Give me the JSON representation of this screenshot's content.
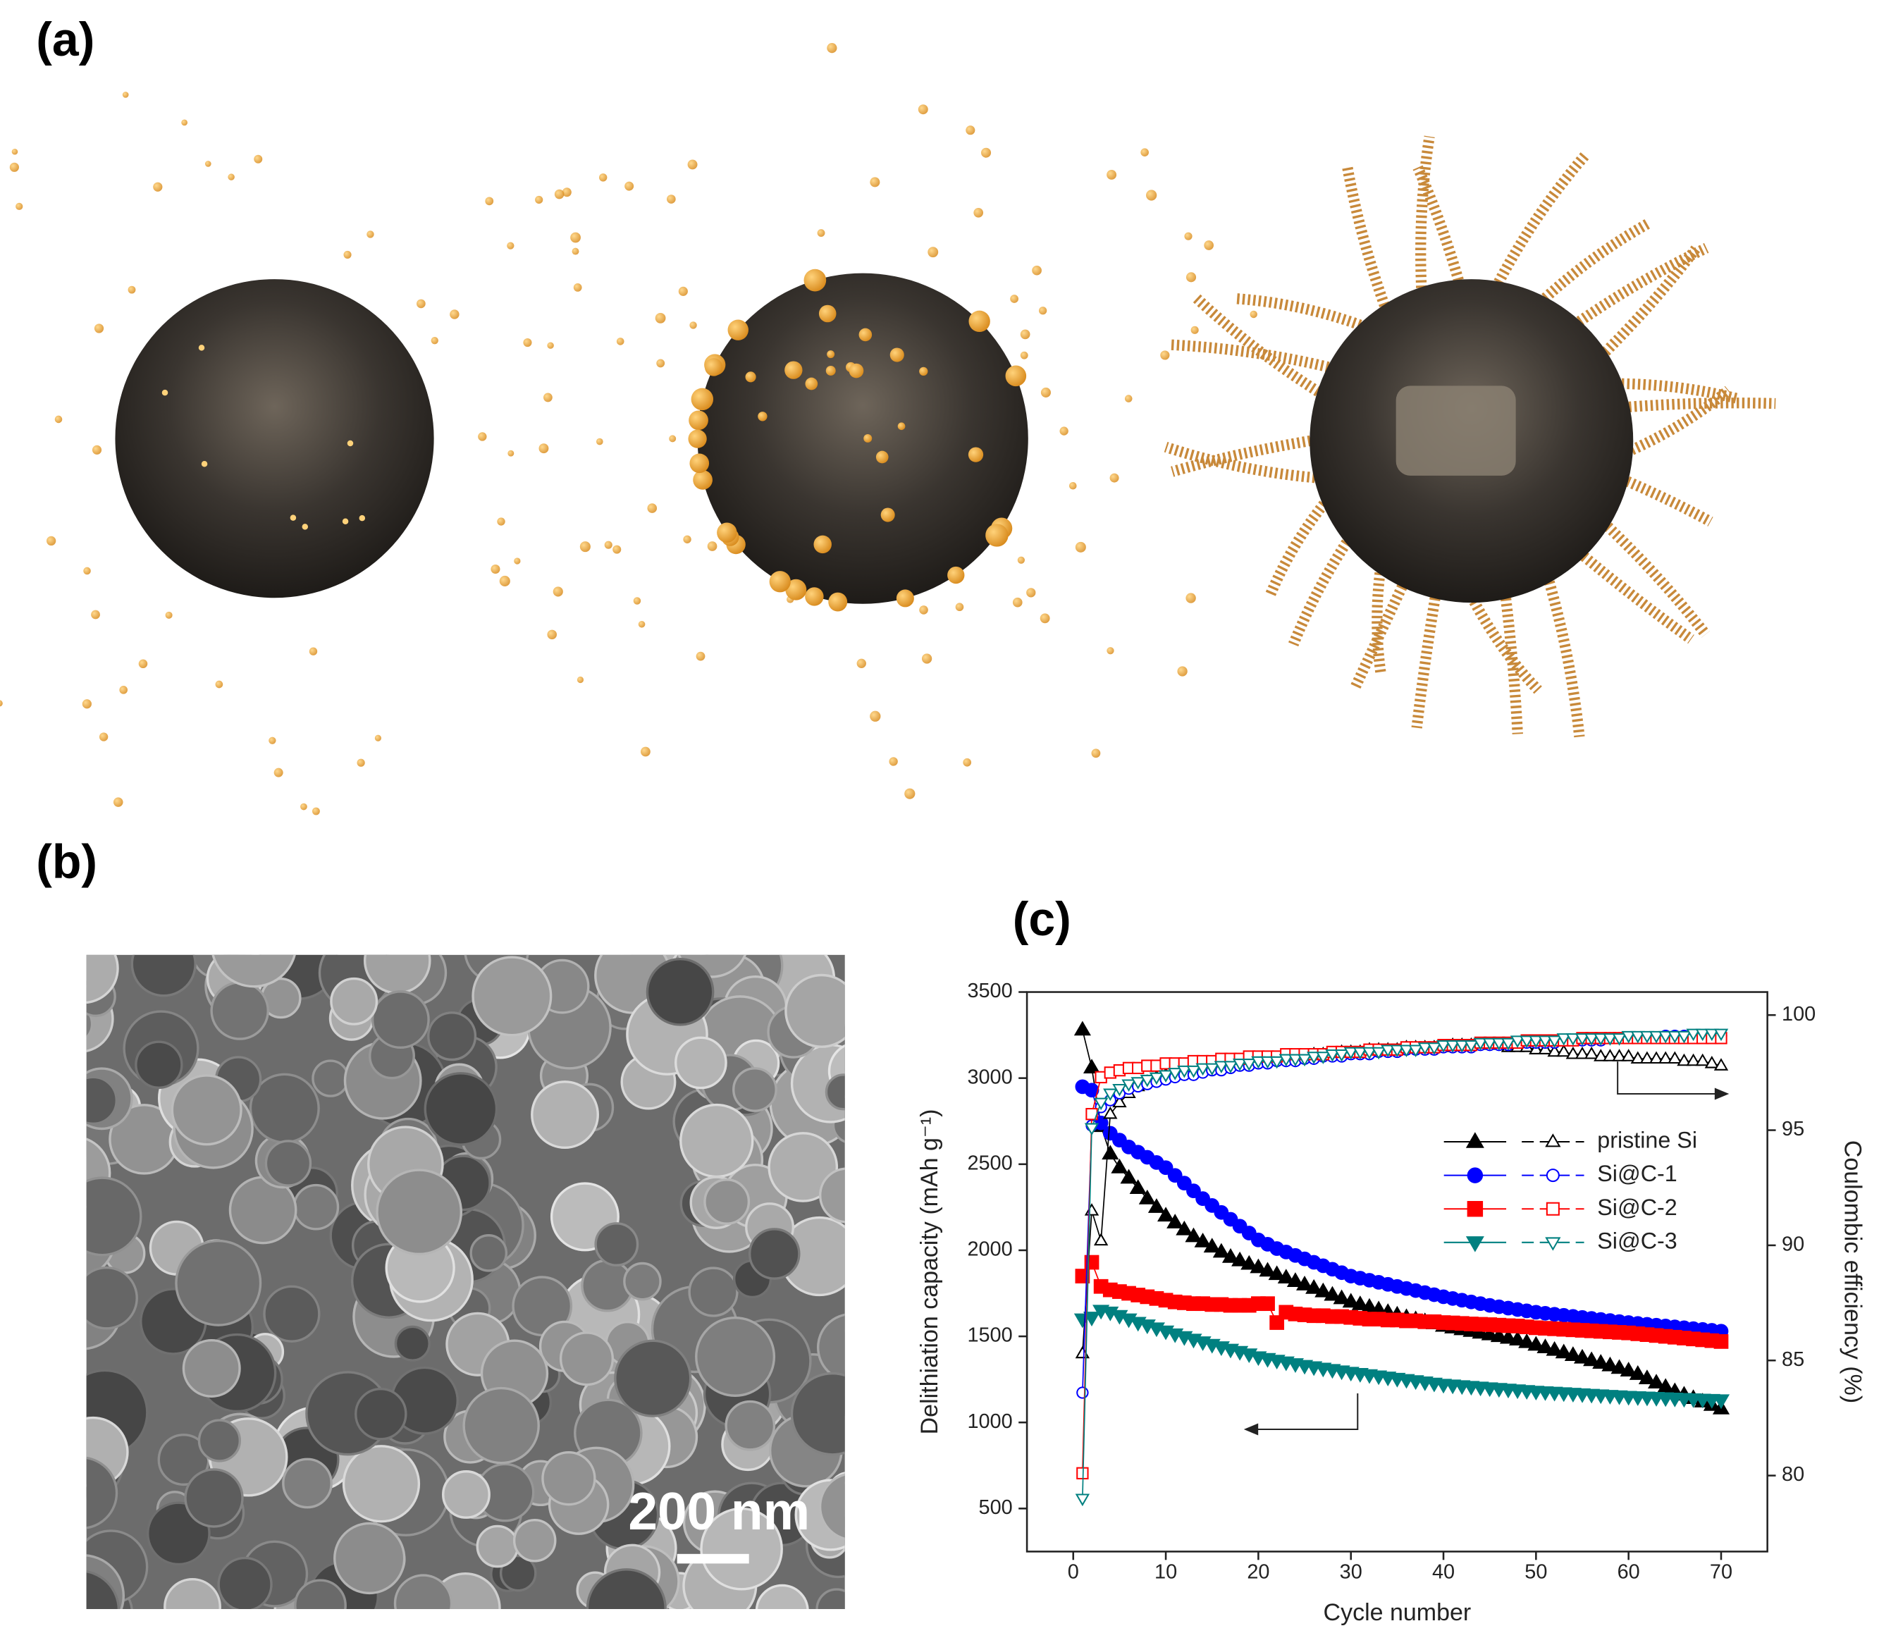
{
  "panels": {
    "a": "(a)",
    "b": "(b)",
    "c": "(c)"
  },
  "scale_bar": "200 nm",
  "chart_data": {
    "type": "line",
    "xlabel": "Cycle number",
    "ylabel": "Delithiation capacity (mAh g⁻¹)",
    "y2label": "Coulombic efficiency (%)",
    "xlim": [
      -5,
      75
    ],
    "xticks": [
      0,
      10,
      20,
      30,
      40,
      50,
      60,
      70
    ],
    "ylim": [
      250,
      3500
    ],
    "yticks": [
      500,
      1000,
      1500,
      2000,
      2500,
      3000,
      3500
    ],
    "y2lim": [
      76.7,
      101
    ],
    "y2ticks": [
      80,
      85,
      90,
      95,
      100
    ],
    "legend": "center right",
    "x": [
      1,
      2,
      3,
      4,
      5,
      6,
      7,
      8,
      9,
      10,
      11,
      12,
      13,
      14,
      15,
      16,
      17,
      18,
      19,
      20,
      21,
      22,
      23,
      24,
      25,
      26,
      27,
      28,
      29,
      30,
      31,
      32,
      33,
      34,
      35,
      36,
      37,
      38,
      39,
      40,
      41,
      42,
      43,
      44,
      45,
      46,
      47,
      48,
      49,
      50,
      51,
      52,
      53,
      54,
      55,
      56,
      57,
      58,
      59,
      60,
      61,
      62,
      63,
      64,
      65,
      66,
      67,
      68,
      69,
      70
    ],
    "series": [
      {
        "name": "pristine Si",
        "color": "#000000",
        "marker": "triangle-up",
        "filled": true,
        "values": [
          3280,
          3060,
          2720,
          2560,
          2480,
          2420,
          2360,
          2300,
          2250,
          2200,
          2160,
          2120,
          2080,
          2050,
          2020,
          1990,
          1960,
          1940,
          1920,
          1900,
          1880,
          1860,
          1840,
          1820,
          1800,
          1780,
          1760,
          1740,
          1720,
          1700,
          1685,
          1670,
          1655,
          1640,
          1625,
          1610,
          1598,
          1586,
          1574,
          1560,
          1550,
          1540,
          1530,
          1520,
          1510,
          1500,
          1490,
          1480,
          1465,
          1450,
          1435,
          1420,
          1405,
          1390,
          1375,
          1360,
          1345,
          1330,
          1315,
          1300,
          1280,
          1255,
          1230,
          1205,
          1180,
          1160,
          1140,
          1120,
          1100,
          1080
        ]
      },
      {
        "name": "Si@C-1",
        "color": "#0000ff",
        "marker": "circle",
        "filled": true,
        "values": [
          2950,
          2930,
          2740,
          2680,
          2640,
          2600,
          2570,
          2540,
          2510,
          2480,
          2435,
          2390,
          2345,
          2300,
          2260,
          2220,
          2180,
          2140,
          2100,
          2060,
          2035,
          2010,
          1990,
          1970,
          1950,
          1930,
          1910,
          1890,
          1870,
          1850,
          1838,
          1826,
          1814,
          1802,
          1790,
          1778,
          1766,
          1754,
          1742,
          1730,
          1720,
          1710,
          1700,
          1690,
          1680,
          1672,
          1664,
          1656,
          1648,
          1640,
          1634,
          1628,
          1622,
          1616,
          1610,
          1604,
          1598,
          1592,
          1586,
          1580,
          1575,
          1570,
          1565,
          1560,
          1555,
          1550,
          1545,
          1540,
          1535,
          1530
        ]
      },
      {
        "name": "Si@C-2",
        "color": "#ff0000",
        "marker": "square",
        "filled": true,
        "values": [
          1850,
          1930,
          1790,
          1770,
          1760,
          1750,
          1740,
          1730,
          1720,
          1710,
          1700,
          1695,
          1690,
          1690,
          1685,
          1685,
          1680,
          1680,
          1680,
          1690,
          1690,
          1580,
          1640,
          1630,
          1625,
          1620,
          1620,
          1615,
          1615,
          1610,
          1605,
          1600,
          1600,
          1595,
          1595,
          1590,
          1590,
          1585,
          1585,
          1580,
          1578,
          1575,
          1572,
          1570,
          1568,
          1565,
          1562,
          1560,
          1555,
          1550,
          1547,
          1544,
          1541,
          1538,
          1535,
          1532,
          1529,
          1526,
          1523,
          1520,
          1515,
          1510,
          1505,
          1500,
          1495,
          1490,
          1485,
          1480,
          1475,
          1470
        ]
      },
      {
        "name": "Si@C-3",
        "color": "#008080",
        "marker": "triangle-down",
        "filled": true,
        "values": [
          1600,
          1610,
          1650,
          1640,
          1620,
          1600,
          1580,
          1565,
          1548,
          1530,
          1513,
          1497,
          1482,
          1467,
          1452,
          1438,
          1424,
          1411,
          1397,
          1380,
          1370,
          1360,
          1350,
          1340,
          1330,
          1322,
          1314,
          1306,
          1298,
          1290,
          1283,
          1276,
          1269,
          1262,
          1255,
          1248,
          1241,
          1234,
          1227,
          1220,
          1216,
          1212,
          1208,
          1204,
          1200,
          1196,
          1192,
          1188,
          1184,
          1180,
          1177,
          1174,
          1171,
          1168,
          1165,
          1162,
          1159,
          1156,
          1153,
          1150,
          1148,
          1146,
          1144,
          1142,
          1140,
          1138,
          1136,
          1134,
          1132,
          1130
        ]
      },
      {
        "color": "#000000",
        "marker": "triangle-up",
        "filled": false,
        "axis": "y2",
        "values": [
          85.3,
          91.5,
          90.2,
          95.7,
          96.2,
          96.6,
          96.9,
          97.1,
          97.3,
          97.4,
          97.5,
          97.6,
          97.7,
          97.7,
          97.8,
          97.8,
          97.9,
          97.9,
          98.0,
          98.0,
          98.0,
          98.1,
          98.1,
          98.2,
          98.2,
          98.3,
          98.3,
          98.3,
          98.4,
          98.4,
          98.4,
          98.5,
          98.5,
          98.5,
          98.5,
          98.6,
          98.6,
          98.6,
          98.6,
          98.6,
          98.7,
          98.7,
          98.7,
          98.7,
          98.7,
          98.7,
          98.6,
          98.6,
          98.6,
          98.5,
          98.5,
          98.4,
          98.4,
          98.3,
          98.3,
          98.3,
          98.2,
          98.2,
          98.2,
          98.2,
          98.1,
          98.1,
          98.1,
          98.1,
          98.1,
          98.0,
          98.0,
          98.0,
          97.9,
          97.8
        ]
      },
      {
        "color": "#0000ff",
        "marker": "circle",
        "filled": false,
        "axis": "y2",
        "values": [
          83.6,
          95.2,
          96.0,
          96.3,
          96.6,
          96.8,
          96.9,
          97.0,
          97.1,
          97.2,
          97.3,
          97.4,
          97.4,
          97.5,
          97.6,
          97.6,
          97.7,
          97.8,
          97.8,
          97.9,
          97.9,
          98.0,
          98.0,
          98.0,
          98.1,
          98.1,
          98.2,
          98.2,
          98.2,
          98.3,
          98.3,
          98.3,
          98.4,
          98.4,
          98.4,
          98.5,
          98.5,
          98.5,
          98.5,
          98.6,
          98.6,
          98.6,
          98.6,
          98.7,
          98.7,
          98.7,
          98.7,
          98.8,
          98.8,
          98.8,
          98.8,
          98.8,
          98.9,
          98.9,
          98.9,
          98.9,
          98.9,
          99.0,
          99.0,
          99.0,
          99.0,
          99.0,
          99.0,
          99.1,
          99.1,
          99.1,
          99.1,
          99.1,
          99.1,
          99.1
        ]
      },
      {
        "color": "#ff0000",
        "marker": "square",
        "filled": false,
        "axis": "y2",
        "values": [
          80.1,
          95.7,
          97.3,
          97.5,
          97.6,
          97.7,
          97.7,
          97.8,
          97.8,
          97.9,
          97.9,
          97.9,
          98.0,
          98.0,
          98.0,
          98.1,
          98.1,
          98.1,
          98.2,
          98.2,
          98.2,
          98.2,
          98.3,
          98.3,
          98.3,
          98.3,
          98.3,
          98.4,
          98.4,
          98.4,
          98.4,
          98.5,
          98.5,
          98.5,
          98.5,
          98.6,
          98.6,
          98.6,
          98.6,
          98.7,
          98.7,
          98.7,
          98.7,
          98.8,
          98.8,
          98.8,
          98.8,
          98.8,
          98.9,
          98.9,
          98.9,
          98.9,
          98.9,
          98.9,
          99.0,
          99.0,
          99.0,
          99.0,
          99.0,
          99.0,
          99.0,
          99.0,
          99.0,
          99.0,
          99.0,
          99.0,
          99.0,
          99.0,
          99.0,
          99.0
        ]
      },
      {
        "color": "#008080",
        "marker": "triangle-down",
        "filled": false,
        "axis": "y2",
        "values": [
          79.0,
          95.1,
          96.2,
          96.6,
          96.8,
          97.0,
          97.1,
          97.2,
          97.3,
          97.4,
          97.5,
          97.6,
          97.6,
          97.7,
          97.7,
          97.8,
          97.8,
          97.9,
          97.9,
          98.0,
          98.0,
          98.0,
          98.1,
          98.1,
          98.1,
          98.2,
          98.2,
          98.3,
          98.3,
          98.4,
          98.4,
          98.4,
          98.4,
          98.5,
          98.5,
          98.5,
          98.5,
          98.6,
          98.6,
          98.7,
          98.7,
          98.7,
          98.7,
          98.8,
          98.8,
          98.8,
          98.8,
          98.9,
          98.9,
          98.9,
          98.9,
          98.9,
          99.0,
          99.0,
          99.0,
          99.0,
          99.0,
          99.0,
          99.0,
          99.1,
          99.1,
          99.1,
          99.1,
          99.1,
          99.1,
          99.1,
          99.2,
          99.2,
          99.2,
          99.2
        ]
      }
    ]
  }
}
